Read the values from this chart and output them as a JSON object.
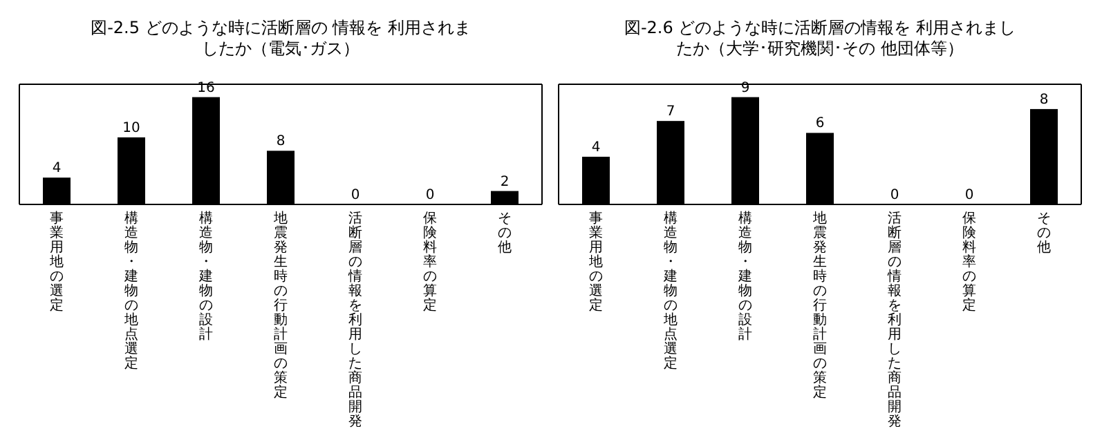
{
  "chart_data": [
    {
      "type": "bar",
      "title": "図-2.5  どのような時に活断層の 情報を 利用されましたか（電気･ガス）",
      "categories": [
        "事業用地の選定",
        "構造物・建物の地点選定",
        "構造物・建物の設計",
        "地震発生時の行動計画の策定",
        "活断層の情報を利用した商品開発",
        "保険料率の算定",
        "その他"
      ],
      "values": [
        4,
        10,
        16,
        8,
        0,
        0,
        2
      ],
      "color": "#000000",
      "data_labels": true
    },
    {
      "type": "bar",
      "title": "図-2.6  どのような時に活断層の情報を 利用されましたか（大学･研究機関･その 他団体等）",
      "categories": [
        "事業用地の選定",
        "構造物・建物の地点選定",
        "構造物・建物の設計",
        "地震発生時の行動計画の策定",
        "活断層の情報を利用した商品開発",
        "保険料率の算定",
        "その他"
      ],
      "values": [
        4,
        7,
        9,
        6,
        0,
        0,
        8
      ],
      "color": "#000000",
      "data_labels": true
    }
  ]
}
